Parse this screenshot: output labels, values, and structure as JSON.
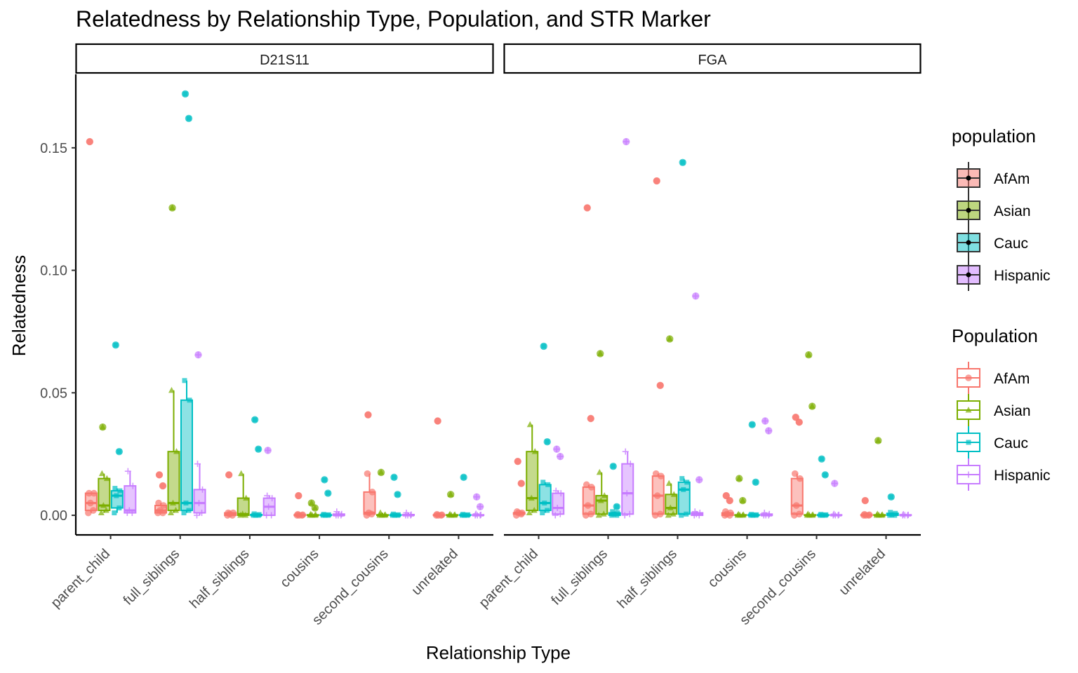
{
  "chart_data": {
    "type": "boxplot",
    "title": "Relatedness by Relationship Type, Population, and STR Marker",
    "xlabel": "Relationship Type",
    "ylabel": "Relatedness",
    "ylim": [
      -0.008,
      0.18
    ],
    "y_ticks": [
      0,
      0.05,
      0.1,
      0.15
    ],
    "y_tick_labels": [
      "0.00",
      "0.05",
      "0.10",
      "0.15"
    ],
    "categories": [
      "parent_child",
      "full_siblings",
      "half_siblings",
      "cousins",
      "second_cousins",
      "unrelated"
    ],
    "populations": [
      "AfAm",
      "Asian",
      "Cauc",
      "Hispanic"
    ],
    "colors": {
      "AfAm": "#F8766D",
      "Asian": "#7CAE00",
      "Cauc": "#00BFC4",
      "Hispanic": "#C77CFF"
    },
    "legend_fill": {
      "title": "population",
      "entries": [
        "AfAm",
        "Asian",
        "Cauc",
        "Hispanic"
      ]
    },
    "legend_color": {
      "title": "Population",
      "entries": [
        "AfAm",
        "Asian",
        "Cauc",
        "Hispanic"
      ]
    },
    "panels": [
      {
        "marker": "D21S11",
        "boxes": [
          {
            "cat": "parent_child",
            "pop": "AfAm",
            "min": 0.001,
            "q1": 0.002,
            "med": 0.005,
            "q3": 0.009,
            "max": 0.009,
            "out": [
              0.1525
            ]
          },
          {
            "cat": "parent_child",
            "pop": "Asian",
            "min": 0.001,
            "q1": 0.002,
            "med": 0.004,
            "q3": 0.015,
            "max": 0.017,
            "out": [
              0.036
            ]
          },
          {
            "cat": "parent_child",
            "pop": "Cauc",
            "min": 0.001,
            "q1": 0.003,
            "med": 0.008,
            "q3": 0.01,
            "max": 0.011,
            "out": [
              0.0695,
              0.026
            ]
          },
          {
            "cat": "parent_child",
            "pop": "Hispanic",
            "min": 0.001,
            "q1": 0.001,
            "med": 0.002,
            "q3": 0.012,
            "max": 0.018,
            "out": []
          },
          {
            "cat": "full_siblings",
            "pop": "AfAm",
            "min": 0.001,
            "q1": 0.001,
            "med": 0.002,
            "q3": 0.004,
            "max": 0.005,
            "out": [
              0.0165,
              0.012
            ]
          },
          {
            "cat": "full_siblings",
            "pop": "Asian",
            "min": 0.001,
            "q1": 0.002,
            "med": 0.005,
            "q3": 0.026,
            "max": 0.051,
            "out": [
              0.1255
            ]
          },
          {
            "cat": "full_siblings",
            "pop": "Cauc",
            "min": 0.001,
            "q1": 0.002,
            "med": 0.005,
            "q3": 0.047,
            "max": 0.055,
            "out": [
              0.172,
              0.162
            ]
          },
          {
            "cat": "full_siblings",
            "pop": "Hispanic",
            "min": 0.0,
            "q1": 0.001,
            "med": 0.005,
            "q3": 0.0105,
            "max": 0.021,
            "out": [
              0.0655
            ]
          },
          {
            "cat": "half_siblings",
            "pop": "AfAm",
            "min": 0.0,
            "q1": 0.0,
            "med": 0.0005,
            "q3": 0.001,
            "max": 0.001,
            "out": [
              0.0165
            ]
          },
          {
            "cat": "half_siblings",
            "pop": "Asian",
            "min": 0.0,
            "q1": 0.0,
            "med": 0.0005,
            "q3": 0.007,
            "max": 0.017,
            "out": []
          },
          {
            "cat": "half_siblings",
            "pop": "Cauc",
            "min": 0.0,
            "q1": 0.0,
            "med": 0.0,
            "q3": 0.0003,
            "max": 0.0006,
            "out": [
              0.039,
              0.027
            ]
          },
          {
            "cat": "half_siblings",
            "pop": "Hispanic",
            "min": 0.0,
            "q1": 0.0,
            "med": 0.0035,
            "q3": 0.007,
            "max": 0.008,
            "out": [
              0.0265
            ]
          },
          {
            "cat": "cousins",
            "pop": "AfAm",
            "min": 0.0,
            "q1": 0.0,
            "med": 0.0,
            "q3": 0.0002,
            "max": 0.0004,
            "out": [
              0.008
            ]
          },
          {
            "cat": "cousins",
            "pop": "Asian",
            "min": 0.0,
            "q1": 0.0,
            "med": 0.0,
            "q3": 0.0002,
            "max": 0.0004,
            "out": [
              0.005,
              0.003
            ]
          },
          {
            "cat": "cousins",
            "pop": "Cauc",
            "min": 0.0,
            "q1": 0.0,
            "med": 0.0,
            "q3": 0.0002,
            "max": 0.0004,
            "out": [
              0.0145,
              0.009
            ]
          },
          {
            "cat": "cousins",
            "pop": "Hispanic",
            "min": 0.0,
            "q1": 0.0,
            "med": 0.0,
            "q3": 0.0005,
            "max": 0.0015,
            "out": []
          },
          {
            "cat": "second_cousins",
            "pop": "AfAm",
            "min": 0.0,
            "q1": 0.0005,
            "med": 0.001,
            "q3": 0.0095,
            "max": 0.017,
            "out": [
              0.041
            ]
          },
          {
            "cat": "second_cousins",
            "pop": "Asian",
            "min": 0.0,
            "q1": 0.0,
            "med": 0.0,
            "q3": 0.0002,
            "max": 0.001,
            "out": [
              0.0175
            ]
          },
          {
            "cat": "second_cousins",
            "pop": "Cauc",
            "min": 0.0,
            "q1": 0.0,
            "med": 0.0,
            "q3": 0.0002,
            "max": 0.0005,
            "out": [
              0.0155,
              0.0085
            ]
          },
          {
            "cat": "second_cousins",
            "pop": "Hispanic",
            "min": 0.0,
            "q1": 0.0,
            "med": 0.0,
            "q3": 0.0003,
            "max": 0.001,
            "out": []
          },
          {
            "cat": "unrelated",
            "pop": "AfAm",
            "min": 0.0,
            "q1": 0.0,
            "med": 0.0,
            "q3": 0.0002,
            "max": 0.0004,
            "out": [
              0.0385
            ]
          },
          {
            "cat": "unrelated",
            "pop": "Asian",
            "min": 0.0,
            "q1": 0.0,
            "med": 0.0,
            "q3": 0.0002,
            "max": 0.0004,
            "out": [
              0.0085
            ]
          },
          {
            "cat": "unrelated",
            "pop": "Cauc",
            "min": 0.0,
            "q1": 0.0,
            "med": 0.0,
            "q3": 0.0002,
            "max": 0.0004,
            "out": [
              0.0155
            ]
          },
          {
            "cat": "unrelated",
            "pop": "Hispanic",
            "min": 0.0,
            "q1": 0.0,
            "med": 0.0,
            "q3": 0.0002,
            "max": 0.0006,
            "out": [
              0.0075,
              0.0035
            ]
          }
        ]
      },
      {
        "marker": "FGA",
        "boxes": [
          {
            "cat": "parent_child",
            "pop": "AfAm",
            "min": 0.0,
            "q1": 0.0005,
            "med": 0.001,
            "q3": 0.001,
            "max": 0.0015,
            "out": [
              0.022,
              0.013
            ]
          },
          {
            "cat": "parent_child",
            "pop": "Asian",
            "min": 0.001,
            "q1": 0.002,
            "med": 0.007,
            "q3": 0.026,
            "max": 0.037,
            "out": []
          },
          {
            "cat": "parent_child",
            "pop": "Cauc",
            "min": 0.001,
            "q1": 0.002,
            "med": 0.005,
            "q3": 0.0125,
            "max": 0.0135,
            "out": [
              0.069,
              0.03
            ]
          },
          {
            "cat": "parent_child",
            "pop": "Hispanic",
            "min": 0.0,
            "q1": 0.0005,
            "med": 0.003,
            "q3": 0.009,
            "max": 0.01,
            "out": [
              0.027,
              0.024
            ]
          },
          {
            "cat": "full_siblings",
            "pop": "AfAm",
            "min": 0.0,
            "q1": 0.0005,
            "med": 0.004,
            "q3": 0.0115,
            "max": 0.0125,
            "out": [
              0.1255,
              0.0395
            ]
          },
          {
            "cat": "full_siblings",
            "pop": "Asian",
            "min": 0.0,
            "q1": 0.0005,
            "med": 0.006,
            "q3": 0.008,
            "max": 0.0175,
            "out": [
              0.066
            ]
          },
          {
            "cat": "full_siblings",
            "pop": "Cauc",
            "min": 0.0,
            "q1": 0.0,
            "med": 0.0005,
            "q3": 0.001,
            "max": 0.0015,
            "out": [
              0.02,
              0.0035
            ]
          },
          {
            "cat": "full_siblings",
            "pop": "Hispanic",
            "min": 0.0,
            "q1": 0.0005,
            "med": 0.009,
            "q3": 0.021,
            "max": 0.026,
            "out": [
              0.1525
            ]
          },
          {
            "cat": "half_siblings",
            "pop": "AfAm",
            "min": 0.0,
            "q1": 0.0005,
            "med": 0.008,
            "q3": 0.016,
            "max": 0.017,
            "out": [
              0.1365,
              0.053
            ]
          },
          {
            "cat": "half_siblings",
            "pop": "Asian",
            "min": 0.0,
            "q1": 0.0005,
            "med": 0.003,
            "q3": 0.0085,
            "max": 0.013,
            "out": [
              0.072
            ]
          },
          {
            "cat": "half_siblings",
            "pop": "Cauc",
            "min": 0.0,
            "q1": 0.0005,
            "med": 0.0105,
            "q3": 0.0135,
            "max": 0.015,
            "out": [
              0.144
            ]
          },
          {
            "cat": "half_siblings",
            "pop": "Hispanic",
            "min": 0.0,
            "q1": 0.0,
            "med": 0.0005,
            "q3": 0.001,
            "max": 0.0015,
            "out": [
              0.0895,
              0.0145
            ]
          },
          {
            "cat": "cousins",
            "pop": "AfAm",
            "min": 0.0,
            "q1": 0.0,
            "med": 0.0005,
            "q3": 0.001,
            "max": 0.0015,
            "out": [
              0.008,
              0.006
            ]
          },
          {
            "cat": "cousins",
            "pop": "Asian",
            "min": 0.0,
            "q1": 0.0,
            "med": 0.0,
            "q3": 0.0002,
            "max": 0.0004,
            "out": [
              0.015,
              0.006
            ]
          },
          {
            "cat": "cousins",
            "pop": "Cauc",
            "min": 0.0,
            "q1": 0.0,
            "med": 0.0,
            "q3": 0.0002,
            "max": 0.0004,
            "out": [
              0.037,
              0.0135
            ]
          },
          {
            "cat": "cousins",
            "pop": "Hispanic",
            "min": 0.0,
            "q1": 0.0,
            "med": 0.0,
            "q3": 0.0005,
            "max": 0.001,
            "out": [
              0.0385,
              0.0345
            ]
          },
          {
            "cat": "second_cousins",
            "pop": "AfAm",
            "min": 0.0,
            "q1": 0.0005,
            "med": 0.004,
            "q3": 0.015,
            "max": 0.017,
            "out": [
              0.04,
              0.038
            ]
          },
          {
            "cat": "second_cousins",
            "pop": "Asian",
            "min": 0.0,
            "q1": 0.0,
            "med": 0.0,
            "q3": 0.0002,
            "max": 0.0005,
            "out": [
              0.0655,
              0.0445
            ]
          },
          {
            "cat": "second_cousins",
            "pop": "Cauc",
            "min": 0.0,
            "q1": 0.0,
            "med": 0.0,
            "q3": 0.0002,
            "max": 0.0004,
            "out": [
              0.023,
              0.0165
            ]
          },
          {
            "cat": "second_cousins",
            "pop": "Hispanic",
            "min": 0.0,
            "q1": 0.0,
            "med": 0.0,
            "q3": 0.0002,
            "max": 0.0005,
            "out": [
              0.013
            ]
          },
          {
            "cat": "unrelated",
            "pop": "AfAm",
            "min": 0.0,
            "q1": 0.0,
            "med": 0.0,
            "q3": 0.0002,
            "max": 0.0004,
            "out": [
              0.006
            ]
          },
          {
            "cat": "unrelated",
            "pop": "Asian",
            "min": 0.0,
            "q1": 0.0,
            "med": 0.0,
            "q3": 0.0002,
            "max": 0.0005,
            "out": [
              0.0305
            ]
          },
          {
            "cat": "unrelated",
            "pop": "Cauc",
            "min": 0.0,
            "q1": 0.0,
            "med": 0.0002,
            "q3": 0.0008,
            "max": 0.0012,
            "out": [
              0.0075
            ]
          },
          {
            "cat": "unrelated",
            "pop": "Hispanic",
            "min": 0.0,
            "q1": 0.0,
            "med": 0.0,
            "q3": 0.0002,
            "max": 0.0004,
            "out": []
          }
        ]
      }
    ]
  }
}
